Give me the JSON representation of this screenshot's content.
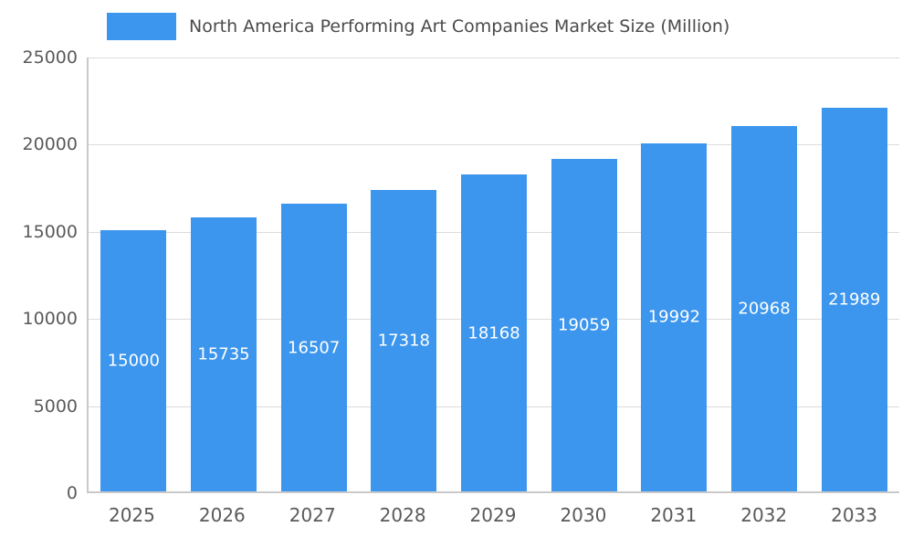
{
  "chart_data": {
    "type": "bar",
    "title": "North America Performing Art Companies Market Size (Million)",
    "categories": [
      "2025",
      "2026",
      "2027",
      "2028",
      "2029",
      "2030",
      "2031",
      "2032",
      "2033"
    ],
    "values": [
      15000,
      15735,
      16507,
      17318,
      18168,
      19059,
      19992,
      20968,
      21989
    ],
    "xlabel": "",
    "ylabel": "",
    "ylim": [
      0,
      25000
    ],
    "ytick_step": 5000,
    "ytick_labels": [
      "0",
      "5000",
      "10000",
      "15000",
      "20000",
      "25000"
    ],
    "grid": true,
    "legend_position": "top-left",
    "bar_color": "#3d96ed",
    "value_label_color": "#ffffff"
  }
}
